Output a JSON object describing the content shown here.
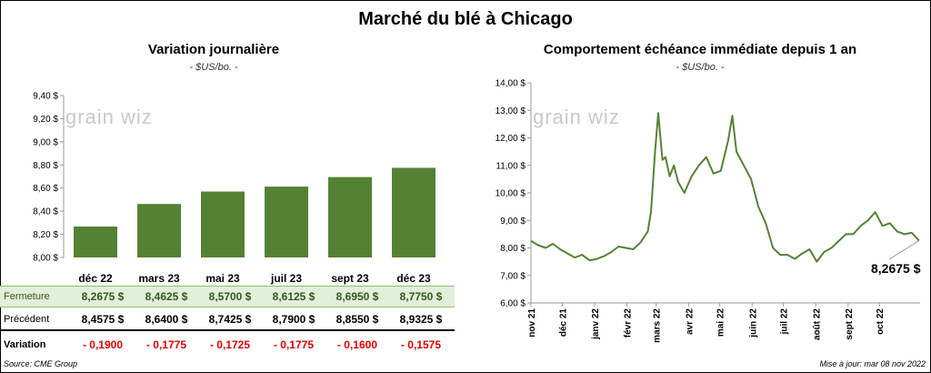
{
  "title": "Marché du blé à Chicago",
  "left": {
    "title": "Variation  journalière",
    "subtitle": "- $US/bo. -",
    "logo": "grain wiz",
    "table": {
      "rows": [
        {
          "label": "Fermeture",
          "values": [
            "8,2675  $",
            "8,4625  $",
            "8,5700  $",
            "8,6125  $",
            "8,6950  $",
            "8,7750  $"
          ]
        },
        {
          "label": "Précédent",
          "values": [
            "8,4575  $",
            "8,6400  $",
            "8,7425  $",
            "8,7900  $",
            "8,8550  $",
            "8,9325  $"
          ]
        },
        {
          "label": "Variation",
          "values": [
            "- 0,1900",
            "- 0,1775",
            "- 0,1725",
            "- 0,1775",
            "- 0,1600",
            "- 0,1575"
          ]
        }
      ]
    }
  },
  "right": {
    "title": "Comportement  échéance immédiate depuis 1 an",
    "subtitle": "- $US/bo. -",
    "logo": "grain wiz",
    "last_value_label": "8,2675 $"
  },
  "footer": {
    "source": "Source: CME Group",
    "update": "Mise à jour: mar 08 nov 2022"
  },
  "colors": {
    "bar": "#548235",
    "line": "#548235"
  },
  "chart_data": [
    {
      "type": "bar",
      "title": "Variation  journalière",
      "subtitle": "- $US/bo. -",
      "categories": [
        "déc 22",
        "mars 23",
        "mai 23",
        "juil 23",
        "sept 23",
        "déc 23"
      ],
      "values": [
        8.2675,
        8.4625,
        8.57,
        8.6125,
        8.695,
        8.775
      ],
      "ylim": [
        8.0,
        9.4
      ],
      "yticks": [
        "8,00 $",
        "8,20 $",
        "8,40 $",
        "8,60 $",
        "8,80 $",
        "9,00 $",
        "9,20 $",
        "9,40 $"
      ],
      "grid": false
    },
    {
      "type": "line",
      "title": "Comportement  échéance immédiate depuis 1 an",
      "subtitle": "- $US/bo. -",
      "xticks": [
        "nov 21",
        "déc 21",
        "janv 22",
        "févr 22",
        "mars 22",
        "avr 22",
        "mai 22",
        "juin 22",
        "juil 22",
        "août 22",
        "sept 22",
        "oct 22"
      ],
      "yticks": [
        "6,00 $",
        "7,00 $",
        "8,00 $",
        "9,00 $",
        "10,00 $",
        "11,00 $",
        "12,00 $",
        "13,00 $",
        "14,00 $"
      ],
      "ylim": [
        6.0,
        14.0
      ],
      "series": [
        {
          "x": [
            "2021-11-01",
            "2021-11-08",
            "2021-11-15",
            "2021-11-22",
            "2021-11-29",
            "2021-12-06",
            "2021-12-13",
            "2021-12-20",
            "2021-12-27",
            "2022-01-03",
            "2022-01-10",
            "2022-01-17",
            "2022-01-24",
            "2022-01-31",
            "2022-02-07",
            "2022-02-14",
            "2022-02-21",
            "2022-02-24",
            "2022-02-28",
            "2022-03-03",
            "2022-03-07",
            "2022-03-10",
            "2022-03-14",
            "2022-03-18",
            "2022-03-22",
            "2022-03-28",
            "2022-04-04",
            "2022-04-11",
            "2022-04-18",
            "2022-04-25",
            "2022-05-02",
            "2022-05-09",
            "2022-05-13",
            "2022-05-17",
            "2022-05-24",
            "2022-05-31",
            "2022-06-07",
            "2022-06-14",
            "2022-06-21",
            "2022-06-28",
            "2022-07-05",
            "2022-07-12",
            "2022-07-19",
            "2022-07-26",
            "2022-08-02",
            "2022-08-09",
            "2022-08-16",
            "2022-08-23",
            "2022-08-30",
            "2022-09-06",
            "2022-09-13",
            "2022-09-20",
            "2022-09-27",
            "2022-10-04",
            "2022-10-11",
            "2022-10-18",
            "2022-10-25",
            "2022-11-01",
            "2022-11-08"
          ],
          "y": [
            8.25,
            8.1,
            8.0,
            8.15,
            7.95,
            7.8,
            7.65,
            7.75,
            7.55,
            7.6,
            7.7,
            7.85,
            8.05,
            8.0,
            7.95,
            8.2,
            8.6,
            9.3,
            11.5,
            12.9,
            11.2,
            11.3,
            10.6,
            11.0,
            10.4,
            10.0,
            10.6,
            11.0,
            11.3,
            10.7,
            10.8,
            11.9,
            12.8,
            11.5,
            11.0,
            10.5,
            9.5,
            8.9,
            8.0,
            7.75,
            7.75,
            7.6,
            7.8,
            7.95,
            7.5,
            7.85,
            8.0,
            8.25,
            8.5,
            8.5,
            8.8,
            9.0,
            9.3,
            8.8,
            8.9,
            8.6,
            8.5,
            8.55,
            8.2675
          ]
        }
      ]
    }
  ]
}
